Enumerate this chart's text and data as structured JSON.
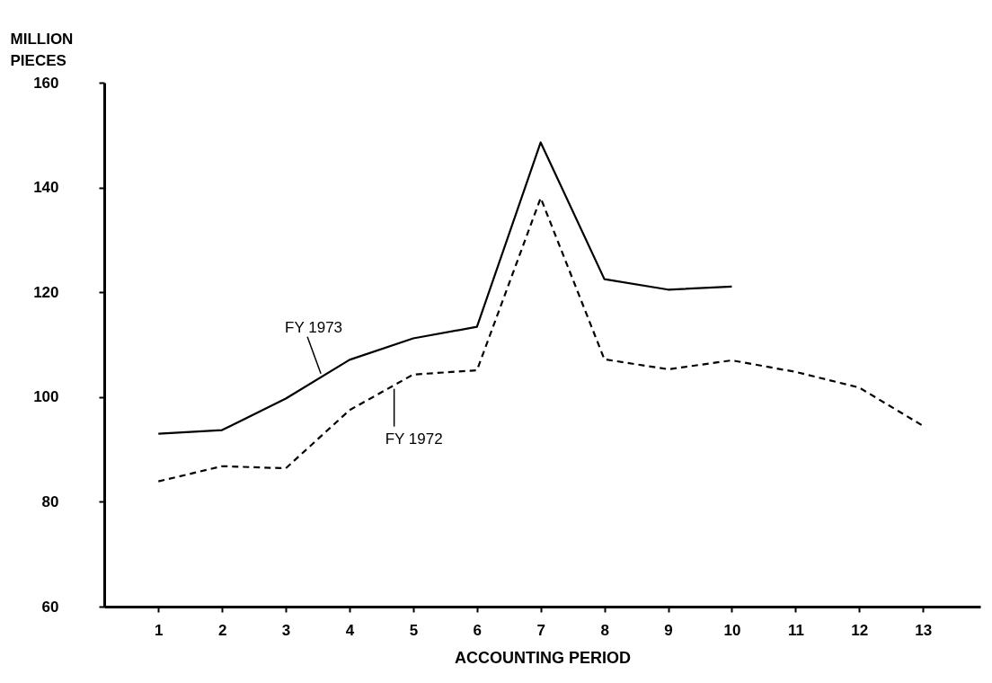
{
  "chart_data": {
    "type": "line",
    "xlabel": "ACCOUNTING PERIOD",
    "ylabel": "MILLION PIECES",
    "x": [
      1,
      2,
      3,
      4,
      5,
      6,
      7,
      8,
      9,
      10,
      11,
      12,
      13
    ],
    "series": [
      {
        "name": "FY 1973",
        "color": "#000000",
        "line_style": "solid",
        "values": [
          93,
          93.7,
          99.7,
          107.1,
          111.2,
          113.4,
          148.6,
          122.5,
          120.5,
          121.1,
          null,
          null,
          null
        ]
      },
      {
        "name": "FY 1972",
        "color": "#000000",
        "line_style": "dashed",
        "values": [
          83.9,
          86.8,
          86.4,
          97.5,
          104.3,
          105.1,
          138,
          107.2,
          105.3,
          107,
          104.8,
          101.8,
          94.5
        ]
      }
    ],
    "xlim": [
      0.15,
      13.9
    ],
    "xticks": [
      1,
      2,
      3,
      4,
      5,
      6,
      7,
      8,
      9,
      10,
      11,
      12,
      13
    ],
    "ylim": [
      60,
      160
    ],
    "yticks": [
      60,
      80,
      100,
      120,
      140,
      160
    ],
    "grid": false,
    "marker": "none"
  }
}
